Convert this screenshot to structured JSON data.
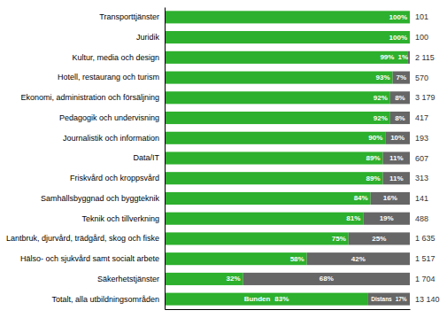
{
  "chart_data": {
    "type": "bar",
    "orientation": "horizontal",
    "stacked": true,
    "data_labels": true,
    "tick_labels": "y",
    "grid": false,
    "categories": [
      "Transporttjänster",
      "Juridik",
      "Kultur, media och design",
      "Hotell, restaurang och turism",
      "Ekonomi, administration och försäljning",
      "Pedagogik och undervisning",
      "Journalistik och information",
      "Data/IT",
      "Friskvård och kroppsvård",
      "Samhällsbyggnad och byggteknik",
      "Teknik och tillverkning",
      "Lantbruk, djurvård, trädgård, skog och fiske",
      "Hälso- och sjukvård samt socialt arbete",
      "Säkerhetstjänster",
      "Totalt, alla utbildningsområden"
    ],
    "series": [
      {
        "name": "Bunden",
        "color": "#2db02d",
        "values": [
          100,
          100,
          99,
          93,
          92,
          92,
          90,
          89,
          89,
          84,
          81,
          75,
          58,
          32,
          83
        ],
        "value_labels": [
          "100%",
          "100%",
          "99%",
          "93%",
          "92%",
          "92%",
          "90%",
          "89%",
          "89%",
          "84%",
          "81%",
          "75%",
          "58%",
          "32%",
          "83%"
        ]
      },
      {
        "name": "Distans",
        "color": "#666666",
        "values": [
          0,
          0,
          1,
          7,
          8,
          8,
          10,
          11,
          11,
          16,
          19,
          25,
          42,
          68,
          17
        ],
        "value_labels": [
          null,
          null,
          "1%",
          "7%",
          "8%",
          "8%",
          "10%",
          "11%",
          "11%",
          "16%",
          "19%",
          "25%",
          "42%",
          "68%",
          "17%"
        ]
      }
    ],
    "totals": [
      "101",
      "100",
      "2 115",
      "570",
      "3 179",
      "417",
      "193",
      "607",
      "313",
      "141",
      "488",
      "1 635",
      "1 517",
      "1 704",
      "13 140"
    ],
    "xlim": [
      0,
      100
    ],
    "xticks": []
  }
}
